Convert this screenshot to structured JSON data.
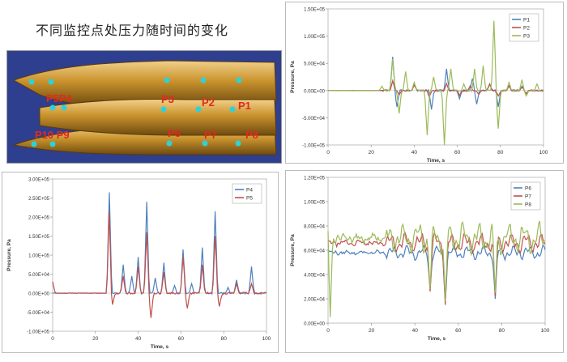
{
  "header": {
    "title": "不同监控点处压力随时间的变化"
  },
  "diagram": {
    "labels": [
      {
        "key": "P5P4",
        "text": "P5P4"
      },
      {
        "key": "P3",
        "text": "P3"
      },
      {
        "key": "P2",
        "text": "P2"
      },
      {
        "key": "P1",
        "text": "P1"
      },
      {
        "key": "P10P9",
        "text": "P10 P9"
      },
      {
        "key": "P6",
        "text": "P6"
      },
      {
        "key": "P7",
        "text": "P7"
      },
      {
        "key": "P8",
        "text": "P8"
      }
    ],
    "colors": {
      "body": "#d09a2e",
      "monitor": "#2fd1d8",
      "label": "#e02a1f"
    }
  },
  "chart_data": [
    {
      "type": "line",
      "id": "c1",
      "xlabel": "Time, s",
      "ylabel": "Pressure, Pa",
      "xlim": [
        0,
        100
      ],
      "ylim": [
        -100000,
        150000
      ],
      "xticks": [
        "0",
        "20",
        "40",
        "60",
        "80",
        "100"
      ],
      "yticks": [
        "1.50E+05",
        "1.00E+05",
        "5.00E+04",
        "0.00E+00",
        "-5.00E+04",
        "-1.00E+05"
      ],
      "legend": "top-right",
      "series": [
        {
          "name": "P1",
          "color": "#4f81bd",
          "spikes": [
            [
              30,
              62000
            ],
            [
              32,
              -30000
            ],
            [
              40,
              12000
            ],
            [
              48,
              -35000
            ],
            [
              55,
              40000
            ],
            [
              61,
              -15000
            ],
            [
              67,
              22000
            ],
            [
              69,
              -25000
            ],
            [
              75,
              12000
            ],
            [
              79,
              -30000
            ],
            [
              84,
              9000
            ],
            [
              90,
              8000
            ],
            [
              92,
              -6000
            ]
          ]
        },
        {
          "name": "P2",
          "color": "#c0504d",
          "spikes": [
            [
              30,
              18000
            ],
            [
              33,
              -8000
            ],
            [
              40,
              10000
            ],
            [
              47,
              -12000
            ],
            [
              55,
              13000
            ],
            [
              61,
              -9000
            ],
            [
              66,
              9000
            ],
            [
              70,
              -7000
            ],
            [
              75,
              12000
            ],
            [
              79,
              -10000
            ],
            [
              84,
              8000
            ],
            [
              90,
              6000
            ],
            [
              92,
              -5000
            ]
          ]
        },
        {
          "name": "P3",
          "color": "#9bbb59",
          "spikes": [
            [
              25,
              8000
            ],
            [
              30,
              58000
            ],
            [
              33,
              -42000
            ],
            [
              36,
              35000
            ],
            [
              40,
              15000
            ],
            [
              46,
              -82000
            ],
            [
              49,
              25000
            ],
            [
              54,
              -100000
            ],
            [
              57,
              40000
            ],
            [
              63,
              12000
            ],
            [
              68,
              40000
            ],
            [
              72,
              46000
            ],
            [
              77,
              128000
            ],
            [
              79,
              -70000
            ],
            [
              84,
              15000
            ],
            [
              90,
              20000
            ],
            [
              92,
              -10000
            ],
            [
              97,
              12000
            ]
          ]
        }
      ]
    },
    {
      "type": "line",
      "id": "c2",
      "xlabel": "Time, s",
      "ylabel": "Pressure, Pa",
      "xlim": [
        0,
        100
      ],
      "ylim": [
        -100000,
        300000
      ],
      "xticks": [
        "0",
        "20",
        "40",
        "60",
        "80",
        "100"
      ],
      "yticks": [
        "3.00E+05",
        "2.50E+05",
        "2.00E+05",
        "1.50E+05",
        "1.00E+05",
        "5.00E+04",
        "0.00E+00",
        "-5.00E+04",
        "-1.00E+05"
      ],
      "legend": "top-right",
      "series": [
        {
          "name": "P4",
          "color": "#4f81bd",
          "spikes": [
            [
              26.5,
              265000
            ],
            [
              33,
              75000
            ],
            [
              37,
              45000
            ],
            [
              40,
              95000
            ],
            [
              44,
              240000
            ],
            [
              48,
              40000
            ],
            [
              52,
              80000
            ],
            [
              57,
              20000
            ],
            [
              61,
              115000
            ],
            [
              65,
              25000
            ],
            [
              70,
              120000
            ],
            [
              76,
              215000
            ],
            [
              82,
              15000
            ],
            [
              86,
              35000
            ],
            [
              93,
              70000
            ]
          ]
        },
        {
          "name": "P5",
          "color": "#c0504d",
          "spikes": [
            [
              0,
              30000
            ],
            [
              26.5,
              215000
            ],
            [
              28,
              -30000
            ],
            [
              33,
              45000
            ],
            [
              40,
              70000
            ],
            [
              44,
              160000
            ],
            [
              46,
              -65000
            ],
            [
              52,
              55000
            ],
            [
              61,
              95000
            ],
            [
              63,
              -40000
            ],
            [
              70,
              75000
            ],
            [
              76,
              150000
            ],
            [
              78,
              -35000
            ],
            [
              86,
              25000
            ],
            [
              93,
              25000
            ]
          ]
        }
      ]
    },
    {
      "type": "line",
      "id": "c3",
      "xlabel": "Time, s",
      "ylabel": "Pressure, Pa",
      "xlim": [
        0,
        100
      ],
      "ylim": [
        0,
        120000
      ],
      "xticks": [
        "0",
        "20",
        "40",
        "60",
        "80",
        "100"
      ],
      "yticks": [
        "1.20E+05",
        "1.00E+05",
        "8.00E+04",
        "6.00E+04",
        "4.00E+04",
        "2.00E+04",
        "0.00E+00"
      ],
      "legend": "top-right",
      "series": [
        {
          "name": "P6",
          "color": "#4f81bd",
          "base": 58000,
          "amp": 6000,
          "spikes": [
            [
              47,
              28000
            ],
            [
              54,
              17000
            ],
            [
              77,
              20000
            ]
          ]
        },
        {
          "name": "P7",
          "color": "#c0504d",
          "base": 66000,
          "amp": 8000,
          "spikes": [
            [
              47,
              26000
            ],
            [
              54,
              15000
            ],
            [
              77,
              22000
            ]
          ]
        },
        {
          "name": "P8",
          "color": "#9bbb59",
          "base": 70000,
          "amp": 13000,
          "spikes": [
            [
              0,
              90000
            ],
            [
              1,
              5000
            ],
            [
              47,
              28000
            ],
            [
              54,
              18000
            ],
            [
              77,
              25000
            ]
          ]
        }
      ]
    }
  ]
}
